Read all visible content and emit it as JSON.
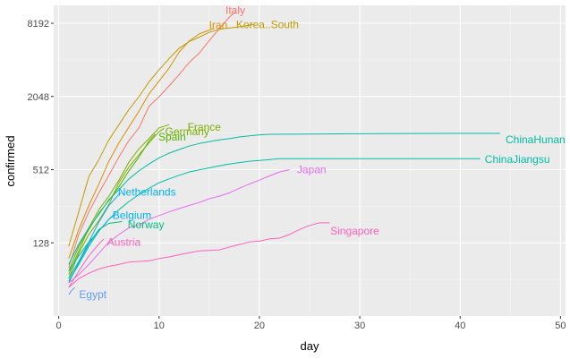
{
  "chart_data": {
    "type": "line",
    "title": "",
    "xlabel": "day",
    "ylabel": "confirmed",
    "xlim": [
      -0.5,
      50.5
    ],
    "ylim": [
      32,
      11500
    ],
    "y_scale": "log2",
    "x_ticks": [
      0,
      10,
      20,
      30,
      40,
      50
    ],
    "y_ticks": [
      128,
      512,
      2048,
      8192
    ],
    "grid": true,
    "legend": "direct labels at line ends",
    "series": [
      {
        "name": "Italy",
        "color": "#F8766D",
        "label_at": [
          17.6,
          10500
        ],
        "points": [
          [
            1,
            80
          ],
          [
            2,
            150
          ],
          [
            3,
            230
          ],
          [
            4,
            330
          ],
          [
            5,
            460
          ],
          [
            6,
            650
          ],
          [
            7,
            890
          ],
          [
            8,
            1130
          ],
          [
            9,
            1700
          ],
          [
            10,
            2040
          ],
          [
            11,
            2500
          ],
          [
            12,
            3100
          ],
          [
            13,
            3900
          ],
          [
            14,
            4650
          ],
          [
            15,
            5900
          ],
          [
            16,
            7400
          ],
          [
            17,
            9200
          ],
          [
            17.6,
            10150
          ]
        ]
      },
      {
        "name": "Iran",
        "color": "#D89000",
        "label_at": [
          15.9,
          7900
        ],
        "points": [
          [
            1,
            95
          ],
          [
            2,
            165
          ],
          [
            3,
            260
          ],
          [
            4,
            390
          ],
          [
            5,
            600
          ],
          [
            6,
            850
          ],
          [
            7,
            1150
          ],
          [
            8,
            1550
          ],
          [
            9,
            2150
          ],
          [
            10,
            2750
          ],
          [
            11,
            3500
          ],
          [
            12,
            4750
          ],
          [
            13,
            5850
          ],
          [
            14,
            6700
          ],
          [
            15,
            7200
          ],
          [
            15.5,
            7450
          ]
        ]
      },
      {
        "name": "Korea..South",
        "color": "#C09B00",
        "label_at": [
          20.8,
          8000
        ],
        "points": [
          [
            1,
            120
          ],
          [
            2,
            230
          ],
          [
            3,
            450
          ],
          [
            4,
            620
          ],
          [
            5,
            900
          ],
          [
            6,
            1200
          ],
          [
            7,
            1600
          ],
          [
            8,
            2040
          ],
          [
            9,
            2700
          ],
          [
            10,
            3400
          ],
          [
            11,
            4200
          ],
          [
            12,
            5100
          ],
          [
            13,
            5800
          ],
          [
            14,
            6300
          ],
          [
            15,
            6900
          ],
          [
            16,
            7300
          ],
          [
            17,
            7500
          ],
          [
            18,
            7650
          ],
          [
            19,
            7900
          ],
          [
            19.5,
            8050
          ]
        ]
      },
      {
        "name": "France",
        "color": "#7CAE00",
        "label_at": [
          14.5,
          1150
        ],
        "points": [
          [
            1,
            70
          ],
          [
            2,
            110
          ],
          [
            3,
            170
          ],
          [
            4,
            240
          ],
          [
            5,
            310
          ],
          [
            6,
            420
          ],
          [
            7,
            590
          ],
          [
            8,
            760
          ],
          [
            9,
            920
          ],
          [
            10,
            1130
          ],
          [
            11,
            1200
          ]
        ]
      },
      {
        "name": "Germany",
        "color": "#7CAE00",
        "label_at": [
          12.8,
          1050
        ],
        "points": [
          [
            1,
            65
          ],
          [
            2,
            105
          ],
          [
            3,
            150
          ],
          [
            4,
            195
          ],
          [
            5,
            265
          ],
          [
            6,
            400
          ],
          [
            7,
            540
          ],
          [
            8,
            680
          ],
          [
            9,
            850
          ],
          [
            10,
            1050
          ],
          [
            10.5,
            1120
          ]
        ]
      },
      {
        "name": "Spain",
        "color": "#53B400",
        "label_at": [
          11.3,
          950
        ],
        "points": [
          [
            1,
            75
          ],
          [
            2,
            120
          ],
          [
            3,
            165
          ],
          [
            4,
            225
          ],
          [
            5,
            285
          ],
          [
            6,
            370
          ],
          [
            7,
            500
          ],
          [
            8,
            650
          ],
          [
            9,
            880
          ],
          [
            9.6,
            1000
          ]
        ]
      },
      {
        "name": "ChinaHunan",
        "color": "#00BCA0",
        "label_at": [
          47.5,
          900
        ],
        "points": [
          [
            1,
            85
          ],
          [
            2,
            125
          ],
          [
            3,
            170
          ],
          [
            4,
            220
          ],
          [
            5,
            290
          ],
          [
            6,
            350
          ],
          [
            7,
            430
          ],
          [
            8,
            500
          ],
          [
            9,
            570
          ],
          [
            10,
            640
          ],
          [
            11,
            700
          ],
          [
            12,
            750
          ],
          [
            13,
            800
          ],
          [
            14,
            840
          ],
          [
            15,
            870
          ],
          [
            16,
            900
          ],
          [
            17,
            920
          ],
          [
            18,
            950
          ],
          [
            19,
            970
          ],
          [
            20,
            990
          ],
          [
            21,
            1000
          ],
          [
            25,
            1004
          ],
          [
            30,
            1010
          ],
          [
            35,
            1015
          ],
          [
            40,
            1018
          ],
          [
            44,
            1018
          ]
        ]
      },
      {
        "name": "ChinaJiangsu",
        "color": "#00BFA5",
        "label_at": [
          45.7,
          620
        ],
        "points": [
          [
            1,
            75
          ],
          [
            2,
            100
          ],
          [
            3,
            130
          ],
          [
            4,
            160
          ],
          [
            5,
            200
          ],
          [
            6,
            240
          ],
          [
            7,
            280
          ],
          [
            8,
            320
          ],
          [
            9,
            360
          ],
          [
            10,
            400
          ],
          [
            11,
            430
          ],
          [
            12,
            460
          ],
          [
            13,
            490
          ],
          [
            14,
            510
          ],
          [
            15,
            530
          ],
          [
            16,
            550
          ],
          [
            17,
            570
          ],
          [
            18,
            585
          ],
          [
            19,
            600
          ],
          [
            20,
            610
          ],
          [
            21,
            620
          ],
          [
            22,
            630
          ],
          [
            25,
            631
          ],
          [
            30,
            631
          ],
          [
            35,
            631
          ],
          [
            40,
            631
          ],
          [
            42,
            631
          ]
        ]
      },
      {
        "name": "Netherlands",
        "color": "#00B0F6",
        "label_at": [
          8.8,
          335
        ],
        "points": [
          [
            1,
            65
          ],
          [
            2,
            90
          ],
          [
            3,
            130
          ],
          [
            4,
            190
          ],
          [
            5,
            260
          ],
          [
            6,
            320
          ],
          [
            6.2,
            330
          ]
        ]
      },
      {
        "name": "Belgium",
        "color": "#00B0F6",
        "label_at": [
          7.3,
          215
        ],
        "points": [
          [
            1,
            62
          ],
          [
            2,
            85
          ],
          [
            3,
            120
          ],
          [
            4,
            160
          ],
          [
            5,
            200
          ],
          [
            5.5,
            215
          ]
        ]
      },
      {
        "name": "Norway",
        "color": "#00BF7D",
        "label_at": [
          8.7,
          180
        ],
        "points": [
          [
            1,
            60
          ],
          [
            2,
            88
          ],
          [
            3,
            125
          ],
          [
            4,
            165
          ],
          [
            5,
            185
          ],
          [
            6,
            190
          ],
          [
            6.3,
            192
          ]
        ]
      },
      {
        "name": "Japan",
        "color": "#E76BF3",
        "label_at": [
          25.2,
          512
        ],
        "points": [
          [
            1,
            60
          ],
          [
            2,
            70
          ],
          [
            3,
            85
          ],
          [
            4,
            105
          ],
          [
            5,
            130
          ],
          [
            6,
            150
          ],
          [
            7,
            170
          ],
          [
            8,
            180
          ],
          [
            9,
            200
          ],
          [
            10,
            215
          ],
          [
            11,
            230
          ],
          [
            12,
            245
          ],
          [
            13,
            260
          ],
          [
            14,
            275
          ],
          [
            15,
            295
          ],
          [
            16,
            310
          ],
          [
            17,
            330
          ],
          [
            18,
            360
          ],
          [
            19,
            390
          ],
          [
            20,
            420
          ],
          [
            21,
            455
          ],
          [
            22,
            490
          ],
          [
            23,
            512
          ]
        ]
      },
      {
        "name": "Austria",
        "color": "#FF62BC",
        "label_at": [
          6.5,
          130
        ],
        "points": [
          [
            1,
            55
          ],
          [
            2,
            75
          ],
          [
            3,
            100
          ],
          [
            4,
            125
          ],
          [
            4.5,
            138
          ]
        ]
      },
      {
        "name": "Singapore",
        "color": "#FF62BC",
        "label_at": [
          29.5,
          160
        ],
        "points": [
          [
            1,
            55
          ],
          [
            2,
            65
          ],
          [
            3,
            72
          ],
          [
            4,
            78
          ],
          [
            5,
            82
          ],
          [
            6,
            85
          ],
          [
            7,
            89
          ],
          [
            8,
            90
          ],
          [
            9,
            91
          ],
          [
            10,
            95
          ],
          [
            11,
            98
          ],
          [
            12,
            102
          ],
          [
            13,
            106
          ],
          [
            14,
            110
          ],
          [
            15,
            111
          ],
          [
            16,
            112
          ],
          [
            17,
            118
          ],
          [
            18,
            124
          ],
          [
            19,
            130
          ],
          [
            20,
            132
          ],
          [
            21,
            138
          ],
          [
            22,
            140
          ],
          [
            23,
            150
          ],
          [
            24,
            165
          ],
          [
            25,
            178
          ],
          [
            26,
            187
          ],
          [
            27,
            187
          ]
        ]
      },
      {
        "name": "Egypt",
        "color": "#619CFF",
        "label_at": [
          3.4,
          48
        ],
        "points": [
          [
            1,
            48
          ],
          [
            1.3,
            52
          ],
          [
            1.6,
            55
          ]
        ]
      }
    ]
  }
}
